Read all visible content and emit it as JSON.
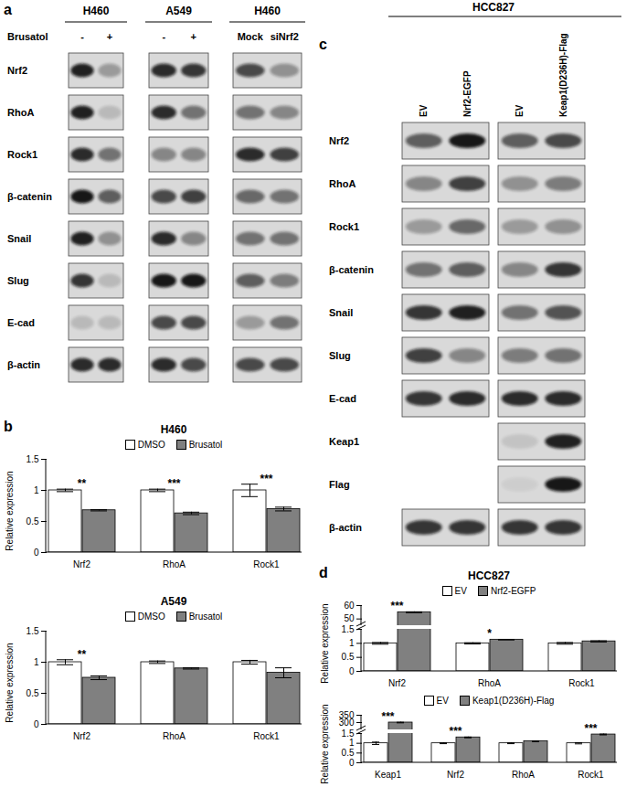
{
  "figure": {
    "blots": [
      {
        "panel": "a",
        "lane_row_label": "Brusatol",
        "groups": [
          {
            "title": "H460",
            "lanes": [
              "-",
              "+"
            ]
          },
          {
            "title": "A549",
            "lanes": [
              "-",
              "+"
            ]
          },
          {
            "title": "H460",
            "lanes": [
              "Mock",
              "siNrf2"
            ]
          }
        ],
        "rows": [
          {
            "protein": "Nrf2",
            "intensity": [
              [
                0.9,
                0.3
              ],
              [
                0.85,
                0.8
              ],
              [
                0.7,
                0.35
              ]
            ]
          },
          {
            "protein": "RhoA",
            "intensity": [
              [
                0.9,
                0.15
              ],
              [
                0.85,
                0.5
              ],
              [
                0.5,
                0.4
              ]
            ]
          },
          {
            "protein": "Rock1",
            "intensity": [
              [
                0.85,
                0.5
              ],
              [
                0.4,
                0.4
              ],
              [
                0.85,
                0.75
              ]
            ]
          },
          {
            "protein": "β-catenin",
            "intensity": [
              [
                0.95,
                0.6
              ],
              [
                0.7,
                0.75
              ],
              [
                0.55,
                0.5
              ]
            ]
          },
          {
            "protein": "Snail",
            "intensity": [
              [
                0.9,
                0.35
              ],
              [
                0.85,
                0.4
              ],
              [
                0.5,
                0.5
              ]
            ]
          },
          {
            "protein": "Slug",
            "intensity": [
              [
                0.8,
                0.15
              ],
              [
                0.95,
                0.95
              ],
              [
                0.6,
                0.45
              ]
            ]
          },
          {
            "protein": "E-cad",
            "intensity": [
              [
                0.15,
                0.15
              ],
              [
                0.7,
                0.7
              ],
              [
                0.3,
                0.5
              ]
            ]
          },
          {
            "protein": "β-actin",
            "intensity": [
              [
                0.85,
                0.85
              ],
              [
                0.85,
                0.7
              ],
              [
                0.7,
                0.7
              ]
            ]
          }
        ]
      },
      {
        "panel": "c",
        "title": "HCC827",
        "groups": [
          {
            "lanes": [
              "EV",
              "Nrf2-EGFP"
            ]
          },
          {
            "lanes": [
              "EV",
              "Keap1(D236H)-Flag"
            ]
          }
        ],
        "rows": [
          {
            "protein": "Nrf2",
            "intensity": [
              [
                0.6,
                0.95
              ],
              [
                0.6,
                0.7
              ]
            ]
          },
          {
            "protein": "RhoA",
            "intensity": [
              [
                0.4,
                0.75
              ],
              [
                0.35,
                0.45
              ]
            ]
          },
          {
            "protein": "Rock1",
            "intensity": [
              [
                0.3,
                0.55
              ],
              [
                0.3,
                0.35
              ]
            ]
          },
          {
            "protein": "β-catenin",
            "intensity": [
              [
                0.5,
                0.6
              ],
              [
                0.4,
                0.8
              ]
            ]
          },
          {
            "protein": "Snail",
            "intensity": [
              [
                0.8,
                0.9
              ],
              [
                0.5,
                0.65
              ]
            ]
          },
          {
            "protein": "Slug",
            "intensity": [
              [
                0.75,
                0.4
              ],
              [
                0.45,
                0.5
              ]
            ]
          },
          {
            "protein": "E-cad",
            "intensity": [
              [
                0.8,
                0.85
              ],
              [
                0.85,
                0.85
              ]
            ]
          },
          {
            "protein": "Keap1",
            "intensity": [
              null,
              [
                0.1,
                0.9
              ]
            ]
          },
          {
            "protein": "Flag",
            "intensity": [
              null,
              [
                0.05,
                0.95
              ]
            ]
          },
          {
            "protein": "β-actin",
            "intensity": [
              [
                0.8,
                0.8
              ],
              [
                0.8,
                0.8
              ]
            ]
          }
        ]
      }
    ]
  },
  "chart_data": [
    {
      "panel": "b",
      "type": "bar",
      "title": "H460",
      "y_label": "Relative expression",
      "legend": "top",
      "categories": [
        "Nrf2",
        "RhoA",
        "Rock1"
      ],
      "series": [
        {
          "name": "DMSO",
          "color": "#ffffff",
          "values": [
            1,
            1,
            1
          ],
          "errors": [
            0.02,
            0.02,
            0.1
          ]
        },
        {
          "name": "Brusatol",
          "color": "#808080",
          "values": [
            0.68,
            0.63,
            0.7
          ],
          "errors": [
            0.01,
            0.02,
            0.03
          ]
        }
      ],
      "significance": [
        "**",
        "***",
        "***"
      ],
      "ylim": [
        0,
        1.5
      ],
      "yticks": [
        0,
        0.5,
        1,
        1.5
      ]
    },
    {
      "type": "bar",
      "title": "A549",
      "y_label": "Relative expression",
      "legend": "top",
      "categories": [
        "Nrf2",
        "RhoA",
        "Rock1"
      ],
      "series": [
        {
          "name": "DMSO",
          "color": "#ffffff",
          "values": [
            1,
            1,
            1
          ],
          "errors": [
            0.04,
            0.02,
            0.03
          ]
        },
        {
          "name": "Brusatol",
          "color": "#808080",
          "values": [
            0.75,
            0.9,
            0.83
          ],
          "errors": [
            0.03,
            0.01,
            0.08
          ]
        }
      ],
      "significance": [
        "**",
        null,
        null
      ],
      "ylim": [
        0,
        1.5
      ],
      "yticks": [
        0,
        0.5,
        1,
        1.5
      ]
    },
    {
      "panel": "d",
      "type": "bar",
      "title": "HCC827",
      "y_label": "Relative expression",
      "legend": "top",
      "categories": [
        "Nrf2",
        "RhoA",
        "Rock1"
      ],
      "series": [
        {
          "name": "EV",
          "color": "#ffffff",
          "values": [
            1,
            1,
            1
          ],
          "errors": [
            0.03,
            0.02,
            0.03
          ]
        },
        {
          "name": "Nrf2-EGFP",
          "color": "#808080",
          "values": [
            55,
            1.13,
            1.07
          ],
          "errors": [
            0.3,
            0.01,
            0.02
          ]
        }
      ],
      "significance": [
        "***",
        "*",
        null
      ],
      "y_segments": [
        {
          "ylim": [
            0,
            1.5
          ],
          "yticks": [
            0,
            0.5,
            1,
            1.5
          ]
        },
        {
          "ylim": [
            45,
            60
          ],
          "yticks": [
            50,
            60
          ]
        }
      ]
    },
    {
      "type": "bar",
      "y_label": "Relative expression",
      "legend": "top",
      "categories": [
        "Keap1",
        "Nrf2",
        "RhoA",
        "Rock1"
      ],
      "series": [
        {
          "name": "EV",
          "color": "#ffffff",
          "values": [
            1,
            1,
            1,
            1
          ],
          "errors": [
            0.06,
            0.02,
            0.02,
            0.03
          ]
        },
        {
          "name": "Keap1(D236H)-Flag",
          "color": "#808080",
          "values": [
            300,
            1.3,
            1.1,
            1.45
          ],
          "errors": [
            2,
            0.02,
            0.02,
            0.02
          ]
        }
      ],
      "significance": [
        "***",
        "***",
        null,
        "***"
      ],
      "y_segments": [
        {
          "ylim": [
            0,
            1.5
          ],
          "yticks": [
            0,
            0.5,
            1,
            1.5
          ]
        },
        {
          "ylim": [
            250,
            350
          ],
          "yticks": [
            300,
            350
          ]
        }
      ]
    }
  ]
}
